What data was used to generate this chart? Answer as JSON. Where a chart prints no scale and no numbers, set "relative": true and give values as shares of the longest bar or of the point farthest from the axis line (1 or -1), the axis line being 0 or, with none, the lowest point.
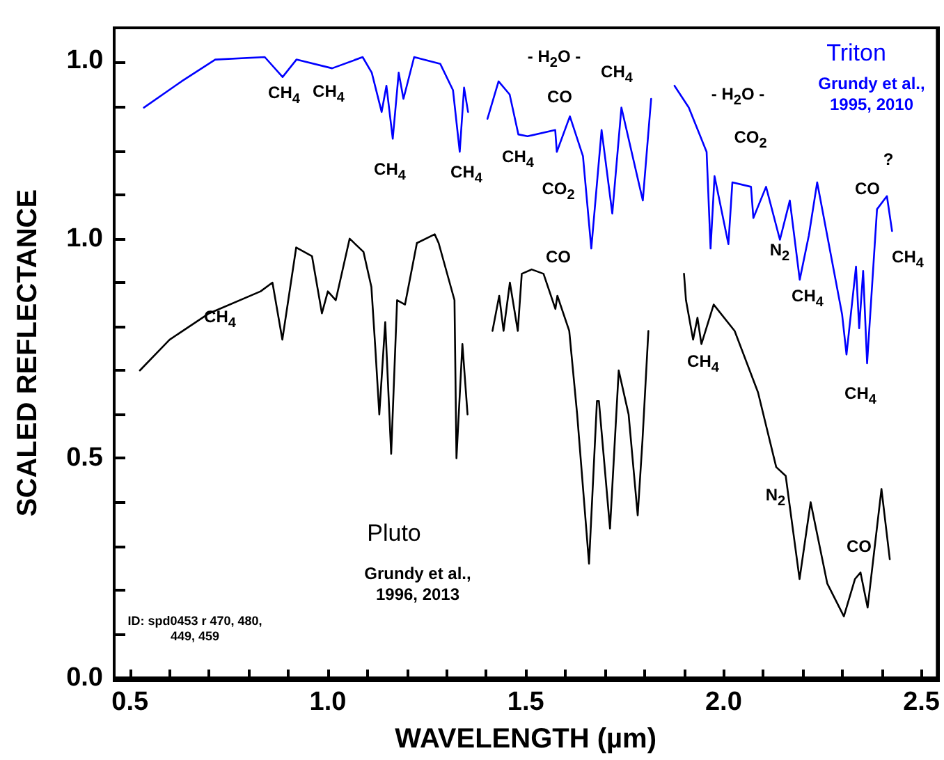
{
  "chart_data": [
    {
      "type": "line",
      "xlabel": "WAVELENGTH (µm)",
      "ylabel": "SCALED REFLECTANCE",
      "xlim": [
        0.46,
        2.54
      ],
      "xticks": [
        {
          "value": 0.5,
          "label": "0.5"
        },
        {
          "value": 0.6,
          "label": null
        },
        {
          "value": 0.7,
          "label": null
        },
        {
          "value": 0.8,
          "label": null
        },
        {
          "value": 0.9,
          "label": null
        },
        {
          "value": 1,
          "label": "1.0"
        },
        {
          "value": 1.1,
          "label": null
        },
        {
          "value": 1.2,
          "label": null
        },
        {
          "value": 1.3,
          "label": null
        },
        {
          "value": 1.4,
          "label": null
        },
        {
          "value": 1.5,
          "label": "1.5"
        },
        {
          "value": 1.6,
          "label": null
        },
        {
          "value": 1.7,
          "label": null
        },
        {
          "value": 1.8,
          "label": null
        },
        {
          "value": 1.9,
          "label": null
        },
        {
          "value": 2,
          "label": "2.0"
        },
        {
          "value": 2.1,
          "label": null
        },
        {
          "value": 2.2,
          "label": null
        },
        {
          "value": 2.3,
          "label": null
        },
        {
          "value": 2.4,
          "label": null
        },
        {
          "value": 2.5,
          "label": "2.5"
        }
      ],
      "ylim": [
        0,
        1.48
      ],
      "yticks": [
        {
          "value": 0,
          "label": "0.0"
        },
        {
          "value": 0.1,
          "label": null
        },
        {
          "value": 0.2,
          "label": null
        },
        {
          "value": 0.3,
          "label": null
        },
        {
          "value": 0.4,
          "label": null
        },
        {
          "value": 0.5,
          "label": "0.5"
        },
        {
          "value": 0.6,
          "label": null
        },
        {
          "value": 0.7,
          "label": null
        },
        {
          "value": 0.8,
          "label": null
        },
        {
          "value": 0.9,
          "label": null
        },
        {
          "value": 1,
          "label": "1.0"
        },
        {
          "value": 1.1,
          "label": null
        },
        {
          "value": 1.2,
          "label": null
        },
        {
          "value": 1.3,
          "label": null
        },
        {
          "value": 1.4,
          "label": null
        }
      ],
      "grid": false,
      "legend": false,
      "marker": "none",
      "line_style": "solid",
      "series": [
        {
          "name": "Pluto",
          "color": "#000000",
          "x": [
            0.525,
            0.6,
            0.7,
            0.83,
            0.86,
            0.885,
            0.92,
            0.96,
            0.985,
            1.0,
            1.02,
            1.055,
            1.09,
            1.11,
            1.12,
            1.13,
            1.145,
            1.16,
            1.175,
            1.195,
            1.225,
            1.27,
            1.28,
            1.32,
            1.325,
            1.34,
            1.353,
            1.38,
            1.416,
            1.433,
            1.444,
            1.46,
            1.48,
            1.49,
            1.515,
            1.545,
            1.575,
            1.58,
            1.61,
            1.63,
            1.66,
            1.68,
            1.685,
            1.713,
            1.735,
            1.76,
            1.783,
            1.795,
            1.81,
            1.85,
            1.9,
            1.905,
            1.923,
            1.934,
            1.944,
            1.975,
            2.028,
            2.087,
            2.133,
            2.157,
            2.192,
            2.22,
            2.262,
            2.304,
            2.332,
            2.346,
            2.364,
            2.399,
            2.42
          ],
          "values": [
            0.7,
            0.77,
            0.83,
            0.88,
            0.9,
            0.77,
            0.98,
            0.96,
            0.83,
            0.88,
            0.86,
            1.0,
            0.97,
            0.89,
            0.75,
            0.6,
            0.81,
            0.51,
            0.86,
            0.85,
            0.99,
            1.01,
            0.99,
            0.86,
            0.5,
            0.76,
            0.6,
            null,
            0.79,
            0.87,
            0.79,
            0.9,
            0.79,
            0.92,
            0.93,
            0.92,
            0.84,
            0.87,
            0.79,
            0.6,
            0.26,
            0.63,
            0.63,
            0.34,
            0.7,
            0.6,
            0.37,
            0.54,
            0.79,
            null,
            0.92,
            0.86,
            0.77,
            0.82,
            0.76,
            0.85,
            0.79,
            0.65,
            0.48,
            0.46,
            0.225,
            0.4,
            0.215,
            0.14,
            0.225,
            0.24,
            0.16,
            0.43,
            0.27
          ]
        }
      ],
      "annotations": [
        "Grundy et al., 1996, 2013",
        "ID: spd0453 r 470, 480, 449, 459",
        "CH$_{4}$",
        "CO",
        "CH$_{4}$",
        "N$_{2}$",
        "CO"
      ]
    },
    {
      "type": "line",
      "relative": true,
      "xlim": [
        0.46,
        2.54
      ],
      "grid": false,
      "legend": false,
      "marker": "none",
      "line_style": "solid",
      "series": [
        {
          "name": "Triton",
          "color": "#0000ff",
          "x": [
            0.535,
            0.63,
            0.715,
            0.84,
            0.885,
            0.92,
            1.01,
            1.087,
            1.11,
            1.135,
            1.147,
            1.163,
            1.178,
            1.19,
            1.217,
            1.283,
            1.315,
            1.332,
            1.343,
            1.353,
            1.38,
            1.402,
            1.43,
            1.458,
            1.48,
            1.503,
            1.573,
            1.577,
            1.61,
            1.643,
            1.664,
            1.69,
            1.717,
            1.74,
            1.794,
            1.815,
            1.85,
            1.874,
            1.91,
            1.955,
            1.965,
            1.975,
            2.01,
            2.02,
            2.067,
            2.073,
            2.105,
            2.14,
            2.165,
            2.19,
            2.213,
            2.234,
            2.297,
            2.308,
            2.332,
            2.34,
            2.35,
            2.36,
            2.385,
            2.41,
            2.423
          ],
          "values": [
            0.919,
            0.961,
            0.996,
            1,
            0.968,
            0.996,
            0.982,
            1,
            0.975,
            0.912,
            0.954,
            0.869,
            0.975,
            0.933,
            1,
            0.989,
            0.947,
            0.848,
            0.951,
            0.912,
            null,
            0.901,
            0.961,
            0.94,
            0.876,
            0.873,
            0.883,
            0.848,
            0.905,
            0.841,
            0.693,
            0.883,
            0.749,
            0.919,
            0.77,
            0.933,
            null,
            0.954,
            0.919,
            0.848,
            0.693,
            0.809,
            0.7,
            0.799,
            0.792,
            0.742,
            0.792,
            0.707,
            0.77,
            0.643,
            0.714,
            0.799,
            0.587,
            0.523,
            0.664,
            0.565,
            0.657,
            0.509,
            0.756,
            0.777,
            0.721
          ]
        }
      ],
      "annotations": [
        "1.0",
        "Grundy et al., 1995, 2010",
        "CH$_{4}$",
        "CH$_{4}$",
        "CH$_{4}$",
        "CH$_{4}$",
        "- H$_{2}$O -",
        "CO",
        "CH$_{4}$",
        "CH$_{4}$",
        "CO$_{2}$",
        "- H$_{2}$O -",
        "CO$_{2}$",
        "N$_{2}$",
        "CH$_{4}$",
        "CO",
        "?",
        "CH$_{4}$",
        "CH$_{4}$"
      ]
    }
  ]
}
